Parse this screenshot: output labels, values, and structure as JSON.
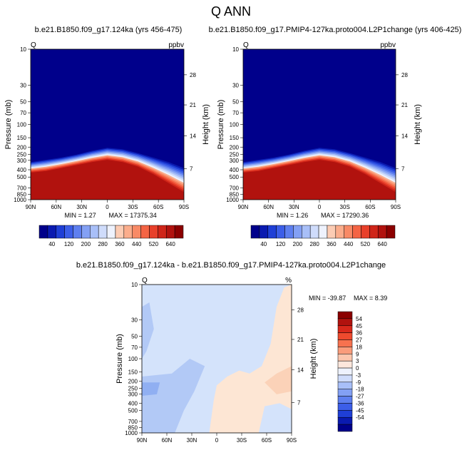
{
  "page": {
    "title": "Q ANN"
  },
  "colors": {
    "blues": [
      "#00008b",
      "#0a1ab0",
      "#1f3fd6",
      "#3c5ee8",
      "#5e7fef",
      "#83a0f4",
      "#a8bff8",
      "#cfdcfb",
      "#eef2fd"
    ],
    "reds": [
      "#fde7dc",
      "#fcccb4",
      "#fbad8c",
      "#f88a66",
      "#f46444",
      "#e8402a",
      "#cf2519",
      "#b1120e",
      "#8b0000"
    ],
    "diff_field": "#d4e3fb",
    "diff_light_blue": "#b2c9f6",
    "diff_mid_blue": "#90aff2",
    "diff_peach": "#fde6d4",
    "diff_peach2": "#fbd2b8"
  },
  "chart_data": [
    {
      "type": "heatmap",
      "panel": "case",
      "title": "b.e21.B1850.f09_g17.124ka (yrs 456-475)",
      "left_label": "Q",
      "right_label": "ppbv",
      "ylabel": "Pressure (mb)",
      "ylabel_right": "Height (km)",
      "x_ticks": [
        "90N",
        "60N",
        "30N",
        "0",
        "30S",
        "60S",
        "90S"
      ],
      "y_ticks": [
        "10",
        "30",
        "50",
        "70",
        "100",
        "150",
        "200",
        "250",
        "300",
        "400",
        "500",
        "700",
        "850",
        "1000"
      ],
      "height_ticks": [
        "28",
        "21",
        "14",
        "7"
      ],
      "min_label": "MIN = ",
      "min_value": "1.27",
      "max_label": "MAX = ",
      "max_value": "17375.34",
      "colorbar_labels": [
        "40",
        "120",
        "200",
        "280",
        "360",
        "440",
        "520",
        "640"
      ]
    },
    {
      "type": "heatmap",
      "panel": "control",
      "title": "b.e21.B1850.f09_g17.PMIP4-127ka.proto004.L2P1change (yrs 406-425)",
      "left_label": "Q",
      "right_label": "ppbv",
      "ylabel": "Pressure (mb)",
      "ylabel_right": "Height (km)",
      "x_ticks": [
        "90N",
        "60N",
        "30N",
        "0",
        "30S",
        "60S",
        "90S"
      ],
      "y_ticks": [
        "10",
        "30",
        "50",
        "70",
        "100",
        "150",
        "200",
        "250",
        "300",
        "400",
        "500",
        "700",
        "850",
        "1000"
      ],
      "height_ticks": [
        "28",
        "21",
        "14",
        "7"
      ],
      "min_label": "MIN = ",
      "min_value": "1.26",
      "max_label": "MAX = ",
      "max_value": "17290.36",
      "colorbar_labels": [
        "40",
        "120",
        "200",
        "280",
        "360",
        "440",
        "520",
        "640"
      ]
    },
    {
      "type": "heatmap",
      "panel": "difference",
      "title": "b.e21.B1850.f09_g17.124ka - b.e21.B1850.f09_g17.PMIP4-127ka.proto004.L2P1change",
      "left_label": "Q",
      "right_label": "%",
      "ylabel": "Pressure (mb)",
      "ylabel_right": "Height (km)",
      "x_ticks": [
        "90N",
        "60N",
        "30N",
        "0",
        "30S",
        "60S",
        "90S"
      ],
      "y_ticks": [
        "10",
        "30",
        "50",
        "70",
        "100",
        "150",
        "200",
        "250",
        "300",
        "400",
        "500",
        "700",
        "850",
        "1000"
      ],
      "height_ticks": [
        "28",
        "21",
        "14",
        "7"
      ],
      "min_label": "MIN = ",
      "min_value": "-39.87",
      "max_label": "MAX = ",
      "max_value": "8.39",
      "colorbar_labels": [
        "54",
        "45",
        "36",
        "27",
        "18",
        "9",
        "3",
        "0",
        "-3",
        "-9",
        "-18",
        "-27",
        "-36",
        "-45",
        "-54"
      ]
    }
  ]
}
